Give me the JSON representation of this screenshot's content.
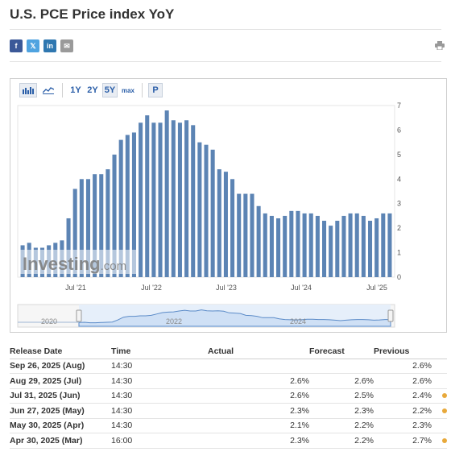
{
  "page": {
    "title": "U.S. PCE Price index YoY"
  },
  "share": {
    "items": [
      {
        "name": "facebook-share-button",
        "glyph": "f",
        "color": "#3b5998"
      },
      {
        "name": "twitter-share-button",
        "glyph": "𝕏",
        "color": "#4fa3e0"
      },
      {
        "name": "linkedin-share-button",
        "glyph": "in",
        "color": "#2f77b0"
      },
      {
        "name": "email-share-button",
        "glyph": "✉",
        "color": "#9a9a9a"
      }
    ],
    "print_icon": "printer-icon"
  },
  "toolbar": {
    "bar_icon": "bar-chart-icon",
    "line_icon": "line-chart-icon",
    "ranges": [
      "1Y",
      "2Y",
      "5Y",
      "max"
    ],
    "active_range": "5Y",
    "p_label": "P"
  },
  "chart_data": {
    "type": "bar",
    "y_axis": {
      "ticks": [
        "0",
        "1",
        "2",
        "3",
        "4",
        "5",
        "6",
        "7"
      ],
      "min": 0,
      "max": 7,
      "position": "right"
    },
    "x_labels": [
      "Jul '21",
      "Jul '22",
      "Jul '23",
      "Jul '24",
      "Jul '25"
    ],
    "values": [
      1.3,
      1.4,
      1.2,
      1.2,
      1.3,
      1.4,
      1.5,
      2.4,
      3.6,
      4.0,
      4.0,
      4.2,
      4.2,
      4.4,
      5.0,
      5.6,
      5.8,
      5.9,
      6.3,
      6.6,
      6.3,
      6.3,
      6.8,
      6.4,
      6.3,
      6.4,
      6.2,
      5.5,
      5.4,
      5.2,
      4.4,
      4.3,
      4.0,
      3.4,
      3.4,
      3.4,
      2.9,
      2.6,
      2.5,
      2.4,
      2.5,
      2.7,
      2.7,
      2.6,
      2.6,
      2.5,
      2.3,
      2.1,
      2.3,
      2.5,
      2.6,
      2.6,
      2.5,
      2.3,
      2.4,
      2.6,
      2.6
    ],
    "bar_color": "#5c84b4",
    "watermark": "Investing.com",
    "navigator": {
      "year_labels": [
        "2020",
        "2022",
        "2024"
      ]
    }
  },
  "table": {
    "headers": [
      "Release Date",
      "Time",
      "Actual",
      "Forecast",
      "Previous"
    ],
    "rows": [
      {
        "date": "Sep 26, 2025 (Aug)",
        "time": "14:30",
        "actual": "",
        "actual_color": "",
        "forecast": "",
        "previous": "2.6%",
        "previous_color": "",
        "dot": false
      },
      {
        "date": "Aug 29, 2025 (Jul)",
        "time": "14:30",
        "actual": "2.6%",
        "actual_color": "",
        "forecast": "2.6%",
        "previous": "2.6%",
        "previous_color": "",
        "dot": false
      },
      {
        "date": "Jul 31, 2025 (Jun)",
        "time": "14:30",
        "actual": "2.6%",
        "actual_color": "green",
        "forecast": "2.5%",
        "previous": "2.4%",
        "previous_color": "green",
        "dot": true
      },
      {
        "date": "Jun 27, 2025 (May)",
        "time": "14:30",
        "actual": "2.3%",
        "actual_color": "",
        "forecast": "2.3%",
        "previous": "2.2%",
        "previous_color": "green",
        "dot": true
      },
      {
        "date": "May 30, 2025 (Apr)",
        "time": "14:30",
        "actual": "2.1%",
        "actual_color": "red",
        "forecast": "2.2%",
        "previous": "2.3%",
        "previous_color": "",
        "dot": false
      },
      {
        "date": "Apr 30, 2025 (Mar)",
        "time": "16:00",
        "actual": "2.3%",
        "actual_color": "green",
        "forecast": "2.2%",
        "previous": "2.7%",
        "previous_color": "green",
        "dot": true
      }
    ]
  }
}
